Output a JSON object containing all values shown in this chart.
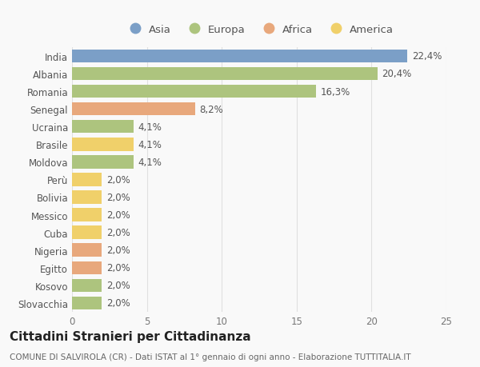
{
  "countries": [
    "India",
    "Albania",
    "Romania",
    "Senegal",
    "Ucraina",
    "Brasile",
    "Moldova",
    "Perù",
    "Bolivia",
    "Messico",
    "Cuba",
    "Nigeria",
    "Egitto",
    "Kosovo",
    "Slovacchia"
  ],
  "values": [
    22.4,
    20.4,
    16.3,
    8.2,
    4.1,
    4.1,
    4.1,
    2.0,
    2.0,
    2.0,
    2.0,
    2.0,
    2.0,
    2.0,
    2.0
  ],
  "labels": [
    "22,4%",
    "20,4%",
    "16,3%",
    "8,2%",
    "4,1%",
    "4,1%",
    "4,1%",
    "2,0%",
    "2,0%",
    "2,0%",
    "2,0%",
    "2,0%",
    "2,0%",
    "2,0%",
    "2,0%"
  ],
  "colors": [
    "#7b9fc7",
    "#adc47e",
    "#adc47e",
    "#e8a87c",
    "#adc47e",
    "#f0d06a",
    "#adc47e",
    "#f0d06a",
    "#f0d06a",
    "#f0d06a",
    "#f0d06a",
    "#e8a87c",
    "#e8a87c",
    "#adc47e",
    "#adc47e"
  ],
  "legend_labels": [
    "Asia",
    "Europa",
    "Africa",
    "America"
  ],
  "legend_colors": [
    "#7b9fc7",
    "#adc47e",
    "#e8a87c",
    "#f0d06a"
  ],
  "xlim": [
    0,
    25
  ],
  "xticks": [
    0,
    5,
    10,
    15,
    20,
    25
  ],
  "title": "Cittadini Stranieri per Cittadinanza",
  "subtitle": "COMUNE DI SALVIROLA (CR) - Dati ISTAT al 1° gennaio di ogni anno - Elaborazione TUTTITALIA.IT",
  "background_color": "#f9f9f9",
  "grid_color": "#e0e0e0",
  "bar_height": 0.75,
  "label_fontsize": 8.5,
  "tick_fontsize": 8.5,
  "legend_fontsize": 9.5,
  "title_fontsize": 11,
  "subtitle_fontsize": 7.5
}
